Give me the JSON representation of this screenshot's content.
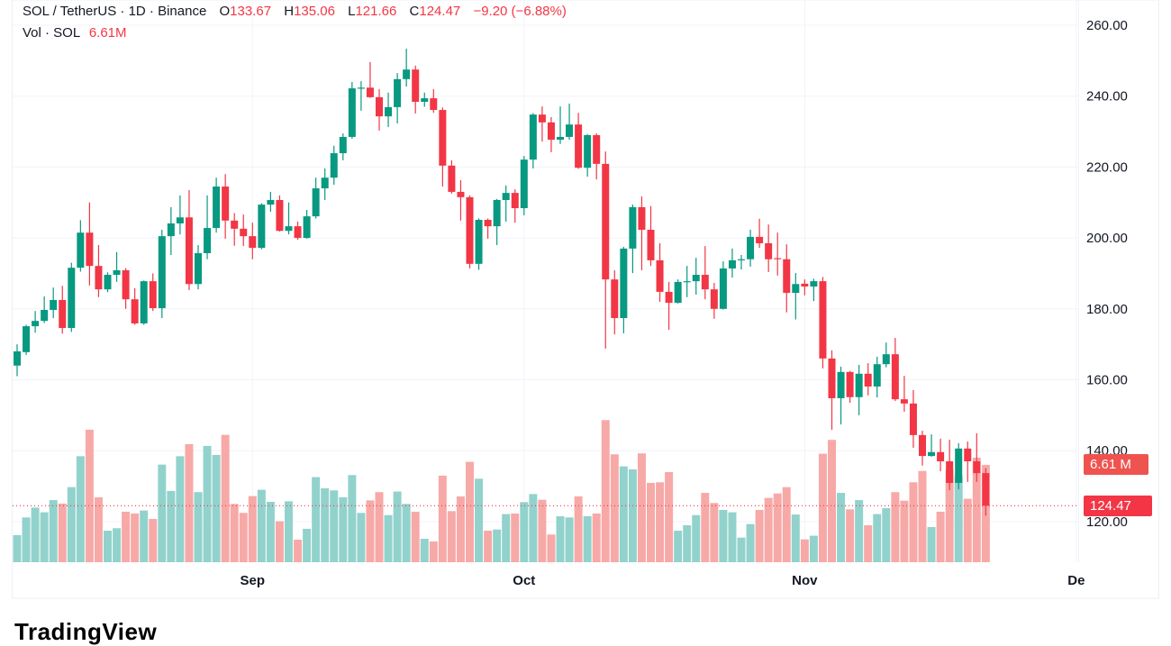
{
  "header": {
    "symbol": "SOL / TetherUS",
    "sep1": " · ",
    "interval": "1D",
    "sep2": " · ",
    "exchange": "Binance",
    "o_label": "O",
    "o_value": "133.67",
    "h_label": "H",
    "h_value": "135.06",
    "l_label": "L",
    "l_value": "121.66",
    "c_label": "C",
    "c_value": "124.47",
    "change": "−9.20 (−6.88%)",
    "vol_label": "Vol · SOL",
    "vol_value": "6.61M"
  },
  "axis": {
    "last_price_label": "124.47",
    "last_volume_label": "6.61 M"
  },
  "logo_text": "TradingView",
  "colors": {
    "up": "#089981",
    "down": "#f23645",
    "vol_up": "#92d2cc",
    "vol_down": "#f7a9a7",
    "grid": "#f0f3fa"
  },
  "chart_data": {
    "type": "candlestick",
    "title": "SOL / TetherUS · 1D · Binance",
    "ylim": [
      110,
      260
    ],
    "y_ticks": [
      "260.00",
      "240.00",
      "220.00",
      "200.00",
      "180.00",
      "160.00",
      "140.00",
      "120.00"
    ],
    "x_ticks": [
      {
        "label": "Sep",
        "index": 26
      },
      {
        "label": "Oct",
        "index": 56
      },
      {
        "label": "Nov",
        "index": 87
      },
      {
        "label": "De",
        "index": 117
      }
    ],
    "ohlc": [
      [
        164,
        170,
        161,
        168
      ],
      [
        167.8,
        175.5,
        167,
        175.1
      ],
      [
        175.1,
        179.4,
        173.3,
        176.6
      ],
      [
        176.6,
        183.5,
        176,
        179.7
      ],
      [
        179.7,
        186,
        177.4,
        182.5
      ],
      [
        182.5,
        186.5,
        173,
        174.6
      ],
      [
        174.6,
        193,
        173.5,
        191.6
      ],
      [
        191.6,
        205,
        190.5,
        201.5
      ],
      [
        201.5,
        210,
        186.6,
        192.1
      ],
      [
        192.1,
        198,
        183.3,
        185.5
      ],
      [
        185.5,
        190.3,
        184.7,
        189.6
      ],
      [
        189.6,
        196,
        187.6,
        190.9
      ],
      [
        190.9,
        191.5,
        180,
        182.7
      ],
      [
        182.7,
        185.8,
        175.5,
        175.9
      ],
      [
        175.9,
        188,
        175.5,
        187.8
      ],
      [
        187.8,
        190,
        179.4,
        180.2
      ],
      [
        180.2,
        202.3,
        177.4,
        200.5
      ],
      [
        200.5,
        208.7,
        195.2,
        204.1
      ],
      [
        204.1,
        212,
        201,
        205.8
      ],
      [
        205.8,
        213.5,
        185.3,
        187
      ],
      [
        187,
        198,
        185.5,
        195.7
      ],
      [
        195.7,
        212,
        194,
        202.8
      ],
      [
        202.8,
        217,
        201.5,
        214.5
      ],
      [
        214.5,
        218,
        199.8,
        204.9
      ],
      [
        204.9,
        207,
        197.8,
        202.6
      ],
      [
        202.6,
        206.6,
        197.7,
        200.5
      ],
      [
        200.5,
        204.3,
        194,
        197.2
      ],
      [
        197.2,
        209.8,
        196.8,
        209.4
      ],
      [
        209.4,
        213,
        207.4,
        210.7
      ],
      [
        210.7,
        212,
        201.8,
        202
      ],
      [
        202,
        210,
        201,
        203.3
      ],
      [
        203.3,
        204.6,
        199.5,
        200
      ],
      [
        200,
        207.9,
        199.8,
        206.1
      ],
      [
        206.1,
        217,
        205.5,
        214
      ],
      [
        214,
        219.6,
        210.7,
        217
      ],
      [
        217,
        226,
        215,
        223.9
      ],
      [
        223.9,
        229.5,
        221.9,
        228.5
      ],
      [
        228.5,
        244,
        228,
        242.2
      ],
      [
        242.2,
        244.2,
        235.9,
        242.4
      ],
      [
        242.4,
        249.6,
        239.5,
        239.7
      ],
      [
        239.7,
        242,
        230.3,
        234.3
      ],
      [
        234.3,
        241,
        231.3,
        236.9
      ],
      [
        236.9,
        246.5,
        232.3,
        244.8
      ],
      [
        244.8,
        253.4,
        242.7,
        247.5
      ],
      [
        247.5,
        248.6,
        235.1,
        238.4
      ],
      [
        238.4,
        241,
        237,
        239.4
      ],
      [
        239.4,
        242,
        235.3,
        236.1
      ],
      [
        236.1,
        236.8,
        214.5,
        220.4
      ],
      [
        220.4,
        221.9,
        212.5,
        213
      ],
      [
        213,
        216.3,
        204.9,
        211.5
      ],
      [
        211.5,
        212,
        191.4,
        192.7
      ],
      [
        192.7,
        205.5,
        191,
        205.1
      ],
      [
        205.1,
        205.5,
        199.8,
        203.3
      ],
      [
        203.3,
        211,
        198,
        210.7
      ],
      [
        210.7,
        214.8,
        204.6,
        212.7
      ],
      [
        212.7,
        213.7,
        204.3,
        208.4
      ],
      [
        208.4,
        223.1,
        206.4,
        222.1
      ],
      [
        222.1,
        235.2,
        219.6,
        234.8
      ],
      [
        234.8,
        237.1,
        227.2,
        232.6
      ],
      [
        232.6,
        234.1,
        224.2,
        227.7
      ],
      [
        227.7,
        237.1,
        226.5,
        228.5
      ],
      [
        228.5,
        237.9,
        227.7,
        232
      ],
      [
        232,
        235.3,
        219.5,
        219.8
      ],
      [
        219.8,
        229.3,
        217.3,
        229
      ],
      [
        229,
        229.5,
        216.5,
        220.9
      ],
      [
        220.9,
        224.4,
        168.8,
        188.3
      ],
      [
        188.3,
        190.9,
        172.8,
        177.4
      ],
      [
        177.4,
        197.5,
        173.1,
        197
      ],
      [
        197,
        209.4,
        190.1,
        208.7
      ],
      [
        208.7,
        211.7,
        190.9,
        202.3
      ],
      [
        202.3,
        209,
        192.1,
        193.7
      ],
      [
        193.7,
        198.5,
        182,
        184.8
      ],
      [
        184.8,
        187.6,
        174.1,
        181.7
      ],
      [
        181.7,
        188.3,
        181.5,
        187.6
      ],
      [
        187.6,
        192.1,
        183.3,
        187.8
      ],
      [
        187.8,
        194.4,
        184,
        189.6
      ],
      [
        189.6,
        197.7,
        182.7,
        185.5
      ],
      [
        185.5,
        187.3,
        177.2,
        180
      ],
      [
        180,
        193.4,
        179.8,
        191.4
      ],
      [
        191.4,
        197,
        188.8,
        193.7
      ],
      [
        193.7,
        195.2,
        191.1,
        194
      ],
      [
        194,
        202.3,
        191.9,
        200.3
      ],
      [
        200.3,
        205.4,
        197.2,
        198.5
      ],
      [
        198.5,
        203.8,
        190.4,
        194
      ],
      [
        194.3,
        201.5,
        189.4,
        194
      ],
      [
        194,
        198.2,
        179,
        184.5
      ],
      [
        184.5,
        190.1,
        177,
        187
      ],
      [
        187.1,
        188.3,
        183.8,
        186.3
      ],
      [
        186.3,
        188.5,
        182.2,
        187.8
      ],
      [
        187.8,
        189,
        163.2,
        166
      ],
      [
        166,
        168.3,
        145.9,
        154.8
      ],
      [
        154.8,
        163.7,
        147.4,
        162.2
      ],
      [
        162.2,
        162.5,
        153.5,
        155.1
      ],
      [
        155.1,
        164.2,
        150,
        161.7
      ],
      [
        161.7,
        164.7,
        155.6,
        158.1
      ],
      [
        158.1,
        166.5,
        155,
        164.4
      ],
      [
        164.4,
        170.5,
        163.5,
        167.2
      ],
      [
        167.2,
        171.8,
        154,
        154.5
      ],
      [
        154.5,
        161.1,
        151,
        153.3
      ],
      [
        153.3,
        157.1,
        140.8,
        144.4
      ],
      [
        144.4,
        145.6,
        135.8,
        138.5
      ],
      [
        138.5,
        144.6,
        138.3,
        139.6
      ],
      [
        139.6,
        143.4,
        134.2,
        137
      ],
      [
        137,
        143.1,
        128.9,
        130.9
      ],
      [
        130.9,
        142.1,
        129.1,
        140.6
      ],
      [
        140.6,
        142.6,
        131.2,
        137
      ],
      [
        137,
        144.9,
        131.2,
        133.67
      ],
      [
        133.67,
        135.06,
        121.66,
        124.47
      ]
    ],
    "volume_millions": [
      1.84,
      3.04,
      3.71,
      3.39,
      4.22,
      3.98,
      5.1,
      7.2,
      9.0,
      4.41,
      2.14,
      2.31,
      3.43,
      3.31,
      3.51,
      2.94,
      6.63,
      4.84,
      7.2,
      8.02,
      4.76,
      7.9,
      7.29,
      8.65,
      3.96,
      3.35,
      4.49,
      4.92,
      4.1,
      2.78,
      4.14,
      1.53,
      2.27,
      5.78,
      5.02,
      4.88,
      4.41,
      5.92,
      3.35,
      4.2,
      4.76,
      3.2,
      4.8,
      3.96,
      3.43,
      1.59,
      1.41,
      5.88,
      3.47,
      4.47,
      6.82,
      5.67,
      2.14,
      2.22,
      3.27,
      3.31,
      4.08,
      4.63,
      4.24,
      1.88,
      3.12,
      3.04,
      4.47,
      3.12,
      3.31,
      9.65,
      7.33,
      6.51,
      6.31,
      7.39,
      5.39,
      5.43,
      6.12,
      2.14,
      2.51,
      3.2,
      4.71,
      4.02,
      3.55,
      3.39,
      1.67,
      2.59,
      3.55,
      4.37,
      4.67,
      5.1,
      3.24,
      1.55,
      1.8,
      7.37,
      8.31,
      4.71,
      3.59,
      4.22,
      2.51,
      3.27,
      3.67,
      4.76,
      4.18,
      5.43,
      6.2,
      2.39,
      3.43,
      6.26,
      5.9,
      4.31,
      7.1,
      6.61
    ],
    "last_price": 124.47
  }
}
